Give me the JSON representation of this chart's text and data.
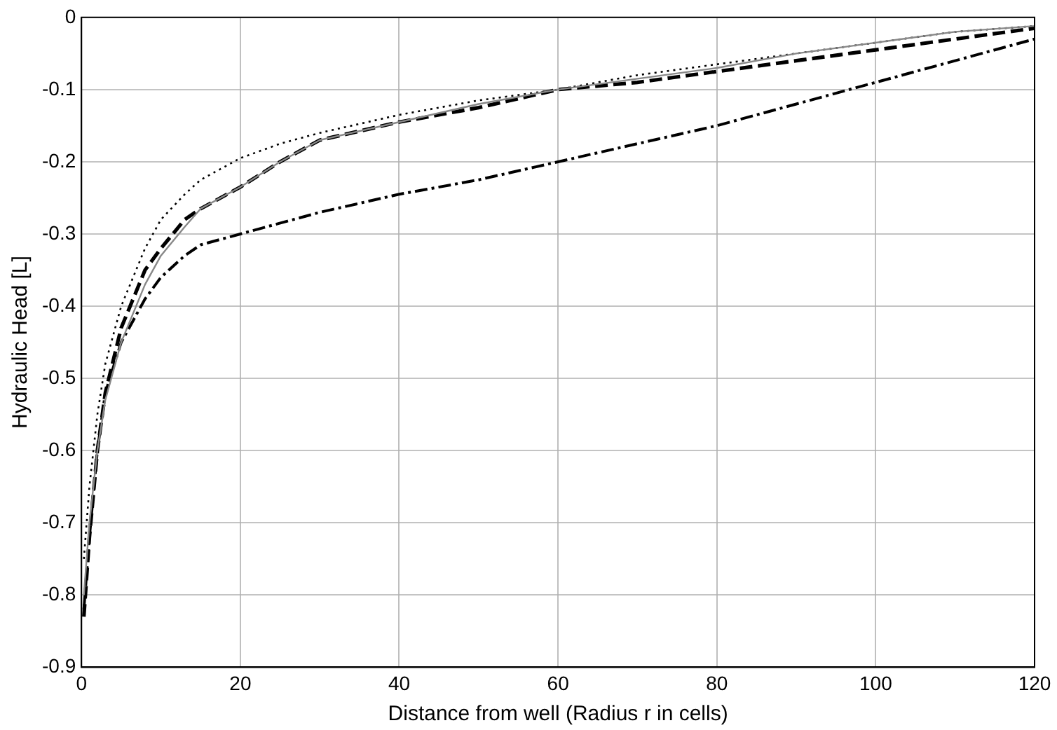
{
  "chart_data": {
    "type": "line",
    "xlabel": "Distance from well (Radius r in cells)",
    "ylabel": "Hydraulic Head [L]",
    "xlim": [
      0,
      120
    ],
    "xticks": [
      0,
      20,
      40,
      60,
      80,
      100,
      120
    ],
    "ylim": [
      -0.9,
      0
    ],
    "yticks": [
      -0.9,
      -0.8,
      -0.7,
      -0.6,
      -0.5,
      -0.4,
      -0.3,
      -0.2,
      -0.1,
      0
    ],
    "grid": true,
    "legend": false,
    "marker": "none",
    "series": [
      {
        "color": "#888888",
        "line_style": "solid",
        "x": [
          0.3,
          1,
          2,
          3,
          5,
          8,
          10,
          13,
          15,
          20,
          25,
          30,
          40,
          50,
          60,
          70,
          80,
          90,
          100,
          110,
          120
        ],
        "values": [
          -0.8,
          -0.7,
          -0.6,
          -0.53,
          -0.45,
          -0.37,
          -0.33,
          -0.29,
          -0.265,
          -0.235,
          -0.2,
          -0.17,
          -0.145,
          -0.12,
          -0.1,
          -0.085,
          -0.07,
          -0.05,
          -0.035,
          -0.02,
          -0.012
        ]
      },
      {
        "color": "#000000",
        "line_style": "dotted",
        "x": [
          0.3,
          1,
          2,
          3,
          5,
          8,
          10,
          13,
          15,
          20,
          25,
          30,
          40,
          50,
          60,
          70,
          80,
          90,
          100,
          110,
          120
        ],
        "values": [
          -0.75,
          -0.65,
          -0.55,
          -0.48,
          -0.4,
          -0.32,
          -0.28,
          -0.245,
          -0.225,
          -0.195,
          -0.175,
          -0.16,
          -0.135,
          -0.115,
          -0.1,
          -0.08,
          -0.065,
          -0.05,
          -0.035,
          -0.02,
          -0.012
        ]
      },
      {
        "color": "#000000",
        "line_style": "dashed",
        "x": [
          0.3,
          1,
          2,
          3,
          5,
          8,
          10,
          13,
          15,
          20,
          25,
          30,
          40,
          50,
          60,
          70,
          80,
          90,
          100,
          110,
          120
        ],
        "values": [
          -0.83,
          -0.72,
          -0.6,
          -0.52,
          -0.43,
          -0.35,
          -0.32,
          -0.28,
          -0.265,
          -0.235,
          -0.2,
          -0.17,
          -0.145,
          -0.125,
          -0.1,
          -0.09,
          -0.075,
          -0.06,
          -0.045,
          -0.03,
          -0.015
        ]
      },
      {
        "color": "#000000",
        "line_style": "dashdot",
        "x": [
          0.3,
          1,
          2,
          3,
          5,
          8,
          10,
          13,
          15,
          20,
          30,
          40,
          50,
          60,
          70,
          80,
          90,
          100,
          110,
          120
        ],
        "values": [
          -0.82,
          -0.72,
          -0.6,
          -0.52,
          -0.45,
          -0.39,
          -0.36,
          -0.33,
          -0.315,
          -0.3,
          -0.27,
          -0.245,
          -0.225,
          -0.2,
          -0.175,
          -0.15,
          -0.12,
          -0.09,
          -0.06,
          -0.03
        ]
      }
    ]
  }
}
